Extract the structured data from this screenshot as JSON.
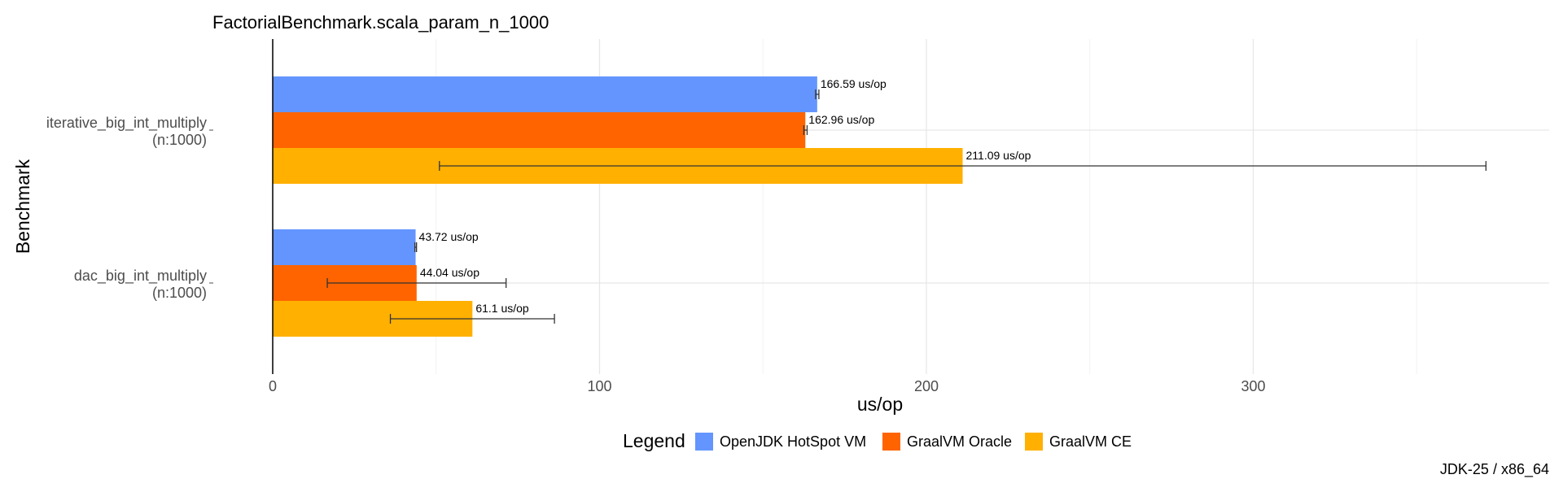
{
  "chart_data": {
    "type": "bar",
    "orientation": "horizontal",
    "title": "FactorialBenchmark.scala_param_n_1000",
    "xlabel": "us/op",
    "ylabel": "Benchmark",
    "xlim": [
      0,
      390
    ],
    "x_ticks": [
      0,
      100,
      200,
      300
    ],
    "grid": true,
    "categories": [
      {
        "label_lines": [
          "iterative_big_int_multiply",
          "(n:1000)"
        ]
      },
      {
        "label_lines": [
          "dac_big_int_multiply",
          "(n:1000)"
        ]
      }
    ],
    "series": [
      {
        "name": "OpenJDK HotSpot VM",
        "color": "#6495ff",
        "values": [
          166.59,
          43.72
        ],
        "error_low": [
          166.1,
          43.5
        ],
        "error_high": [
          167.1,
          44.0
        ],
        "labels": [
          "166.59 us/op",
          "43.72 us/op"
        ]
      },
      {
        "name": "GraalVM Oracle",
        "color": "#ff6400",
        "values": [
          162.96,
          44.04
        ],
        "error_low": [
          162.5,
          16.7
        ],
        "error_high": [
          163.5,
          71.4
        ],
        "labels": [
          "162.96 us/op",
          "44.04 us/op"
        ]
      },
      {
        "name": "GraalVM CE",
        "color": "#ffb000",
        "values": [
          211.09,
          61.1
        ],
        "error_low": [
          51.0,
          36.0
        ],
        "error_high": [
          371.2,
          86.2
        ],
        "labels": [
          "211.09 us/op",
          "61.1 us/op"
        ]
      }
    ],
    "legend": {
      "title": "Legend",
      "position": "bottom"
    },
    "caption": "JDK-25 / x86_64"
  }
}
